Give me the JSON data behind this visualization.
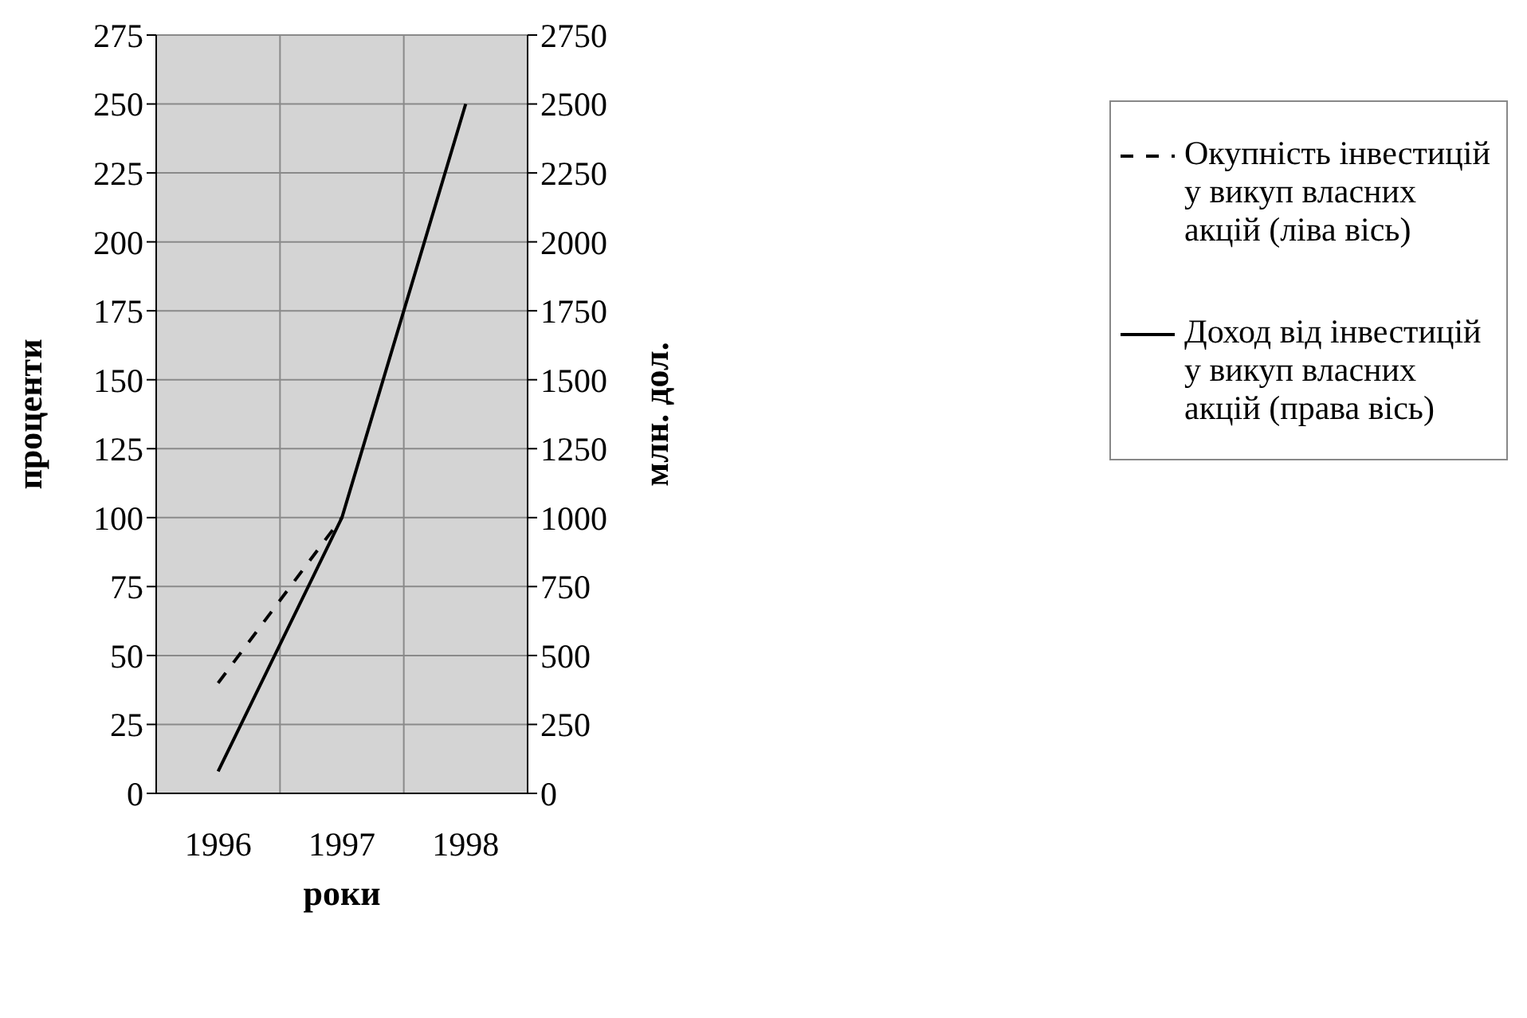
{
  "chart_data": {
    "type": "line",
    "xlabel": "роки",
    "ylabel": "проценти",
    "y2label": "млн. дол.",
    "categories": [
      "1996",
      "1997",
      "1998"
    ],
    "series": [
      {
        "name": "Окупність інвестицій у викуп власних акцій (ліва вісь)",
        "color": "#000000",
        "values": [
          40,
          100,
          null
        ],
        "line_style": "dashed",
        "axis": "y"
      },
      {
        "name": "Доход від інвестицій у викуп власних акцій (права вісь)",
        "color": "#000000",
        "values": [
          80,
          1000,
          2500
        ],
        "line_style": "solid",
        "axis": "y2"
      }
    ],
    "ylim": [
      0,
      275
    ],
    "yticks": [
      0,
      25,
      50,
      75,
      100,
      125,
      150,
      175,
      200,
      225,
      250,
      275
    ],
    "y2lim": [
      0,
      2750
    ],
    "y2ticks": [
      0,
      250,
      500,
      750,
      1000,
      1250,
      1500,
      1750,
      2000,
      2250,
      2500,
      2750
    ],
    "grid": true,
    "legend": "right",
    "marker": "none"
  }
}
